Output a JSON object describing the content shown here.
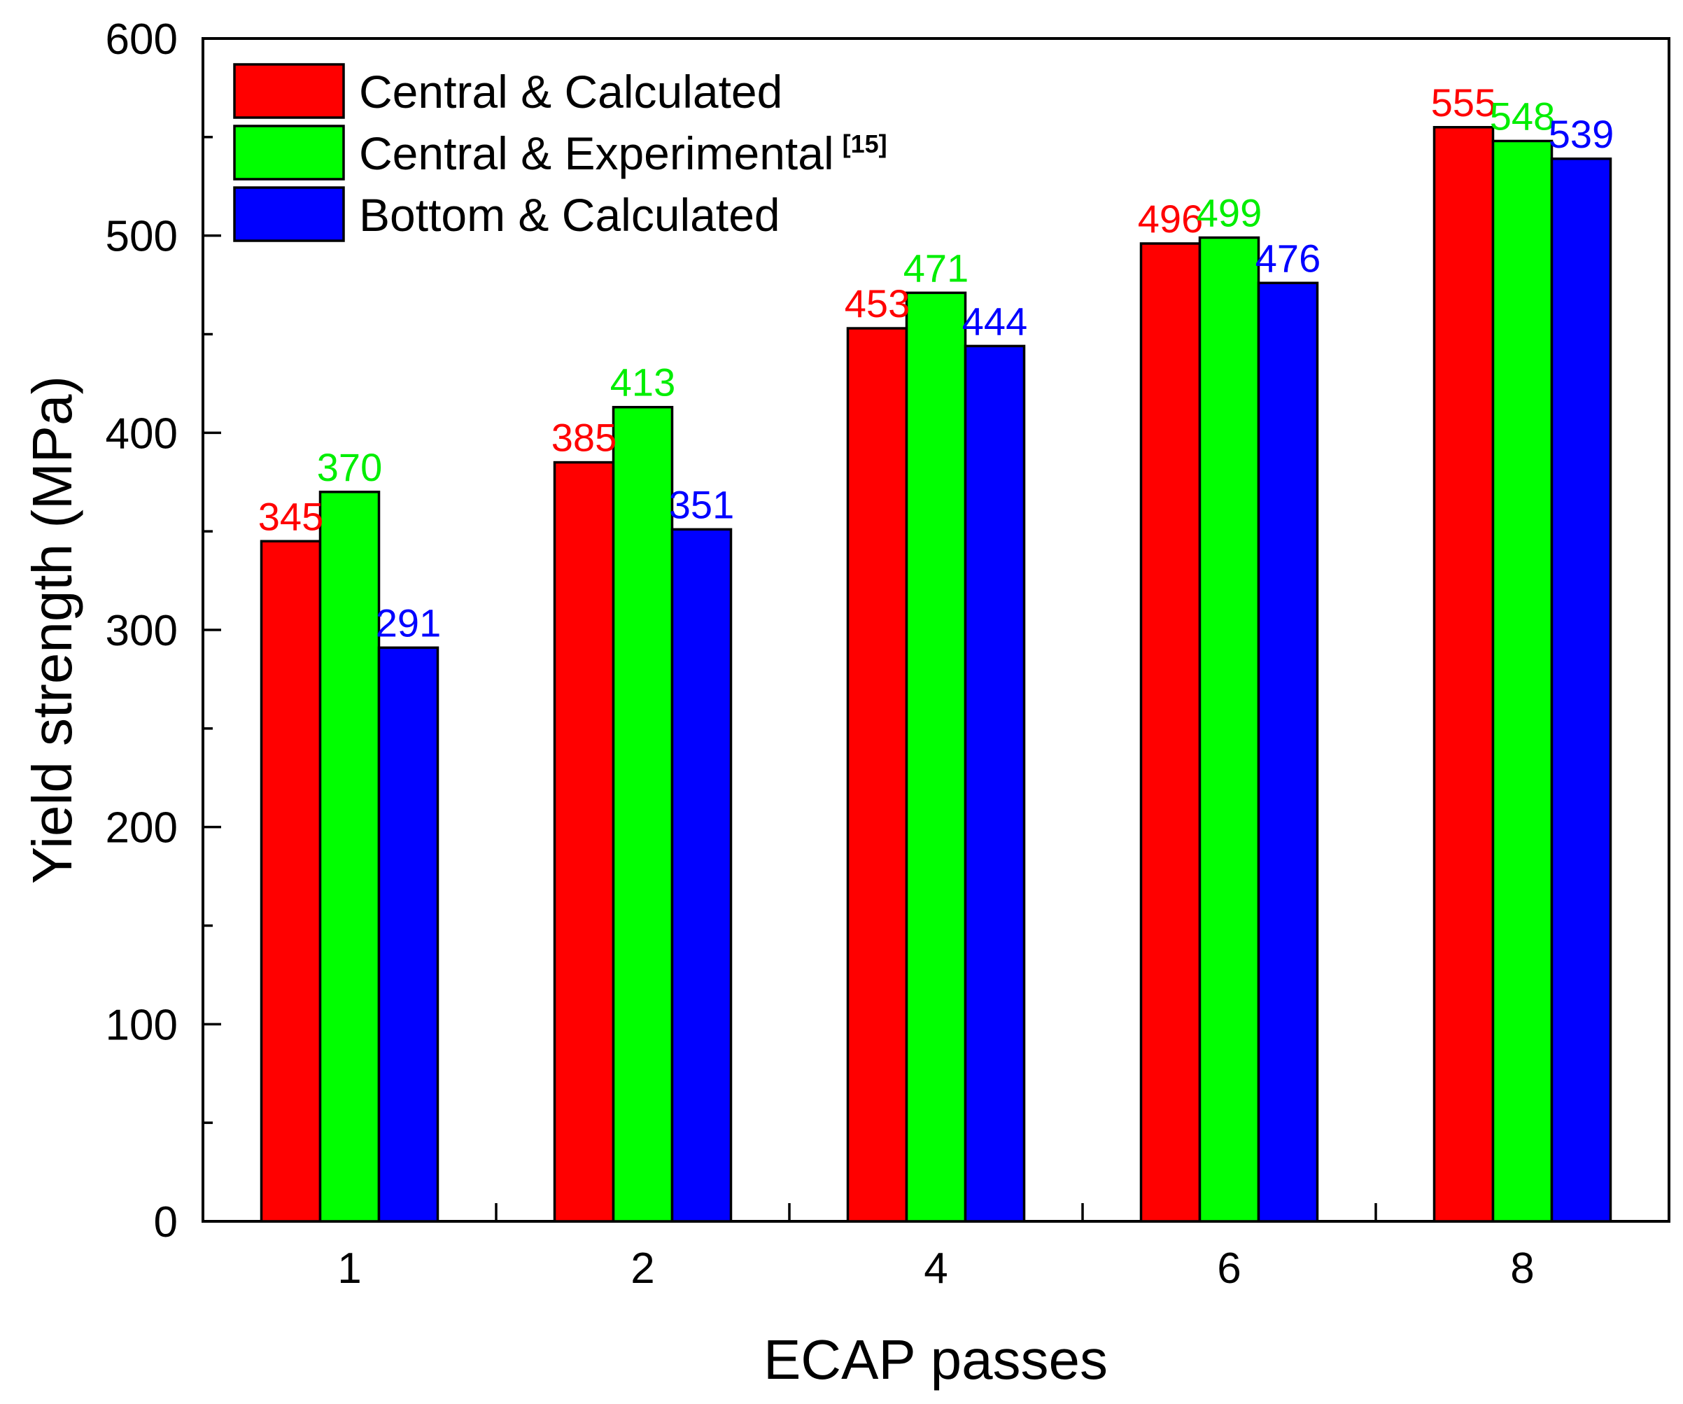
{
  "chart_data": {
    "type": "bar",
    "title": "",
    "xlabel": "ECAP passes",
    "ylabel": "Yield strength (MPa)",
    "categories": [
      "1",
      "2",
      "4",
      "6",
      "8"
    ],
    "ylim": [
      0,
      600
    ],
    "yticks": [
      0,
      100,
      200,
      300,
      400,
      500,
      600
    ],
    "grid": false,
    "legend_position": "top-left",
    "series": [
      {
        "name": "Central & Calculated",
        "superscript": "",
        "color": "#ff0000",
        "label_color": "#ff0000",
        "values": [
          345,
          385,
          453,
          496,
          555
        ]
      },
      {
        "name": "Central & Experimental",
        "superscript": "[15]",
        "color": "#00ff00",
        "label_color": "#00ee00",
        "values": [
          370,
          413,
          471,
          499,
          548
        ]
      },
      {
        "name": "Bottom & Calculated",
        "superscript": "",
        "color": "#0000ff",
        "label_color": "#0000ff",
        "values": [
          291,
          351,
          444,
          476,
          539
        ]
      }
    ]
  }
}
